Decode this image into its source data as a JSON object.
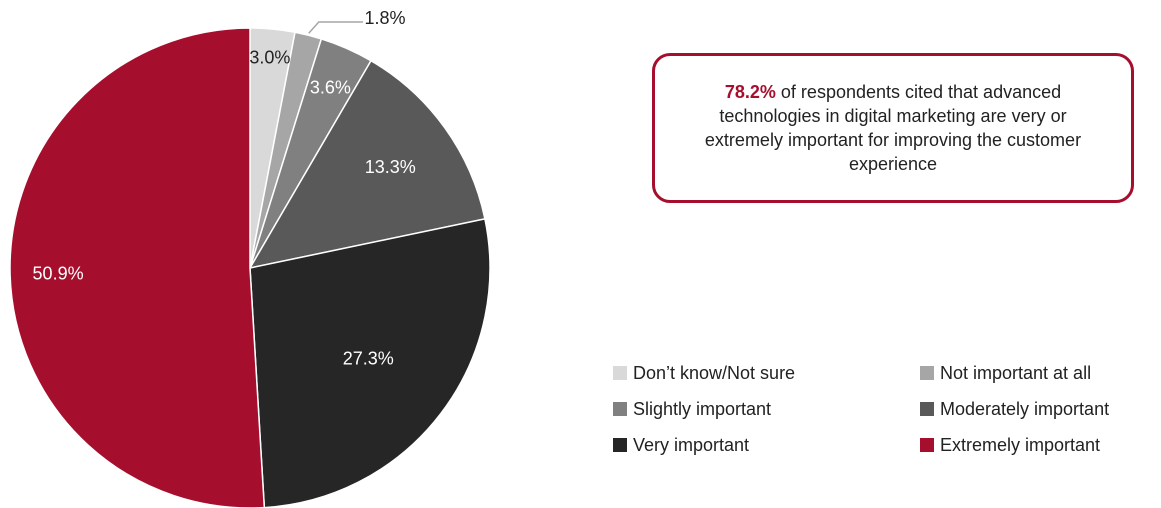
{
  "chart_data": {
    "type": "pie",
    "slices": [
      {
        "name": "Don’t know/Not sure",
        "value": 3.0,
        "label": "3.0%",
        "color": "#d9d9d9",
        "label_color": "#222222"
      },
      {
        "name": "Not important at all",
        "value": 1.8,
        "label": "1.8%",
        "color": "#a6a6a6",
        "label_color": "#222222"
      },
      {
        "name": "Slightly important",
        "value": 3.6,
        "label": "3.6%",
        "color": "#808080",
        "label_color": "#ffffff"
      },
      {
        "name": "Moderately important",
        "value": 13.3,
        "label": "13.3%",
        "color": "#595959",
        "label_color": "#ffffff"
      },
      {
        "name": "Very important",
        "value": 27.3,
        "label": "27.3%",
        "color": "#262626",
        "label_color": "#ffffff"
      },
      {
        "name": "Extremely important",
        "value": 50.9,
        "label": "50.9%",
        "color": "#a50f2d",
        "label_color": "#ffffff"
      }
    ],
    "start": "12 o'clock",
    "direction": "clockwise",
    "legend_position": "bottom-right"
  },
  "callout": {
    "highlight": "78.2%",
    "text": " of respondents cited that advanced technologies in digital marketing are very or extremely important for improving the customer experience",
    "border_color": "#a50f2d"
  }
}
